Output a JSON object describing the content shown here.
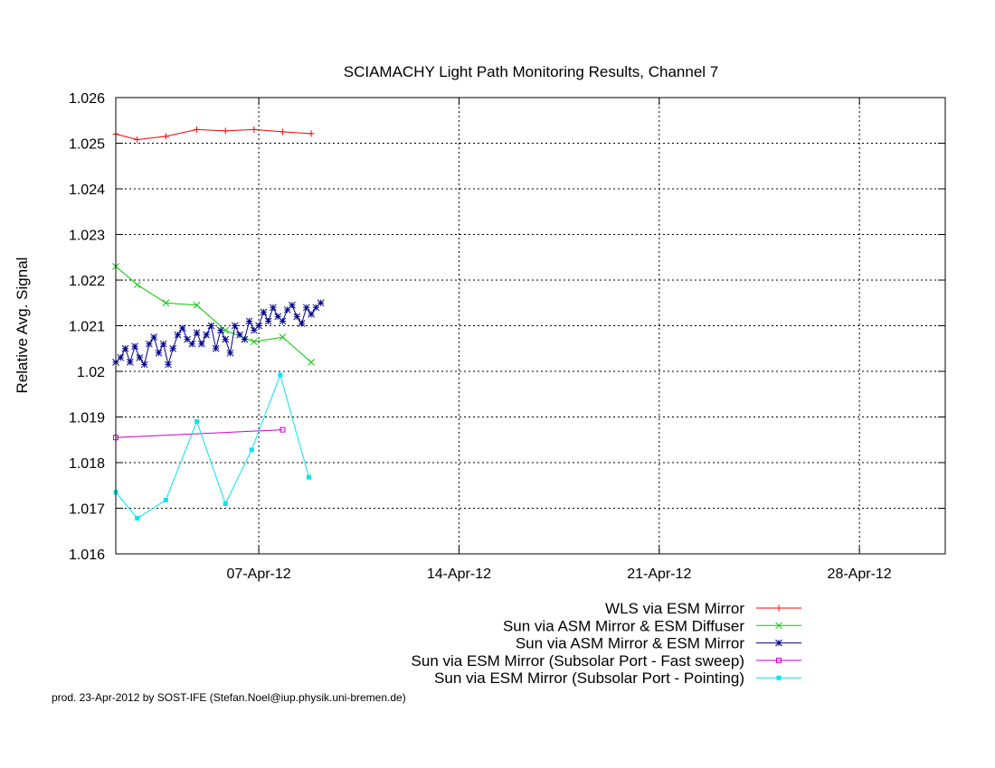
{
  "chart_data": {
    "type": "line",
    "title": "SCIAMACHY Light Path Monitoring Results, Channel 7",
    "xlabel": "",
    "ylabel": "Relative Avg. Signal",
    "x_axis_type": "date",
    "xlim": [
      "2012-04-02",
      "2012-05-01"
    ],
    "ylim": [
      1.016,
      1.026
    ],
    "x_ticks": [
      {
        "date": "2012-04-07",
        "label": "07-Apr-12"
      },
      {
        "date": "2012-04-14",
        "label": "14-Apr-12"
      },
      {
        "date": "2012-04-21",
        "label": "21-Apr-12"
      },
      {
        "date": "2012-04-28",
        "label": "28-Apr-12"
      }
    ],
    "y_ticks": [
      "1.016",
      "1.017",
      "1.018",
      "1.019",
      "1.02",
      "1.021",
      "1.022",
      "1.023",
      "1.024",
      "1.025",
      "1.026"
    ],
    "grid": true,
    "legend_position": "bottom-right",
    "series": [
      {
        "name": "WLS via ESM Mirror",
        "color": "#ff0000",
        "marker": "plus",
        "x": [
          "2012-04-02T00:00",
          "2012-04-02T18:00",
          "2012-04-03T18:00",
          "2012-04-04T20:00",
          "2012-04-05T20:00",
          "2012-04-06T20:00",
          "2012-04-07T20:00",
          "2012-04-08T20:00"
        ],
        "y": [
          1.0252,
          1.02508,
          1.02515,
          1.0253,
          1.02527,
          1.0253,
          1.02525,
          1.02521
        ]
      },
      {
        "name": "Sun via ASM Mirror & ESM Diffuser",
        "color": "#00cc00",
        "marker": "x",
        "x": [
          "2012-04-02T00:00",
          "2012-04-02T18:00",
          "2012-04-03T18:00",
          "2012-04-04T20:00",
          "2012-04-05T20:00",
          "2012-04-06T20:00",
          "2012-04-07T20:00",
          "2012-04-08T20:00"
        ],
        "y": [
          1.0223,
          1.0219,
          1.0215,
          1.02145,
          1.0209,
          1.02065,
          1.02075,
          1.0202
        ]
      },
      {
        "name": "Sun via ASM Mirror & ESM Mirror",
        "color": "#00008b",
        "marker": "star",
        "x": [
          "2012-04-02T00:00",
          "2012-04-02T04:00",
          "2012-04-02T08:00",
          "2012-04-02T12:00",
          "2012-04-02T16:00",
          "2012-04-02T20:00",
          "2012-04-03T00:00",
          "2012-04-03T04:00",
          "2012-04-03T08:00",
          "2012-04-03T12:00",
          "2012-04-03T16:00",
          "2012-04-03T20:00",
          "2012-04-04T00:00",
          "2012-04-04T04:00",
          "2012-04-04T08:00",
          "2012-04-04T12:00",
          "2012-04-04T16:00",
          "2012-04-04T20:00",
          "2012-04-05T00:00",
          "2012-04-05T04:00",
          "2012-04-05T08:00",
          "2012-04-05T12:00",
          "2012-04-05T16:00",
          "2012-04-05T20:00",
          "2012-04-06T00:00",
          "2012-04-06T04:00",
          "2012-04-06T08:00",
          "2012-04-06T12:00",
          "2012-04-06T16:00",
          "2012-04-06T20:00",
          "2012-04-07T00:00",
          "2012-04-07T04:00",
          "2012-04-07T08:00",
          "2012-04-07T12:00",
          "2012-04-07T16:00",
          "2012-04-07T20:00",
          "2012-04-08T00:00",
          "2012-04-08T04:00",
          "2012-04-08T08:00",
          "2012-04-08T12:00",
          "2012-04-08T16:00",
          "2012-04-08T20:00",
          "2012-04-09T00:00",
          "2012-04-09T04:00"
        ],
        "y": [
          1.0202,
          1.0203,
          1.0205,
          1.0202,
          1.02055,
          1.0203,
          1.02015,
          1.0206,
          1.02075,
          1.0204,
          1.0206,
          1.02015,
          1.0205,
          1.0208,
          1.02095,
          1.0207,
          1.0206,
          1.02085,
          1.0206,
          1.0208,
          1.021,
          1.0205,
          1.0209,
          1.0207,
          1.0204,
          1.021,
          1.0208,
          1.0207,
          1.0211,
          1.0209,
          1.021,
          1.0213,
          1.0211,
          1.0214,
          1.0212,
          1.0211,
          1.02135,
          1.02145,
          1.0212,
          1.02105,
          1.0214,
          1.02125,
          1.0214,
          1.0215
        ]
      },
      {
        "name": "Sun via ESM Mirror (Subsolar Port - Fast sweep)",
        "color": "#cc00cc",
        "marker": "square",
        "x": [
          "2012-04-02T00:00",
          "2012-04-07T20:00"
        ],
        "y": [
          1.01855,
          1.01872
        ]
      },
      {
        "name": "Sun via ESM Mirror (Subsolar Port - Pointing)",
        "color": "#00e5ee",
        "marker": "filled-square",
        "x": [
          "2012-04-02T00:00",
          "2012-04-02T18:00",
          "2012-04-03T18:00",
          "2012-04-04T20:00",
          "2012-04-05T20:00",
          "2012-04-06T18:00",
          "2012-04-07T18:00",
          "2012-04-08T18:00"
        ],
        "y": [
          1.01735,
          1.01678,
          1.01718,
          1.0189,
          1.0171,
          1.01828,
          1.01992,
          1.01768
        ]
      }
    ],
    "footer": "prod. 23-Apr-2012 by SOST-IFE (Stefan.Noel@iup.physik.uni-bremen.de)"
  }
}
